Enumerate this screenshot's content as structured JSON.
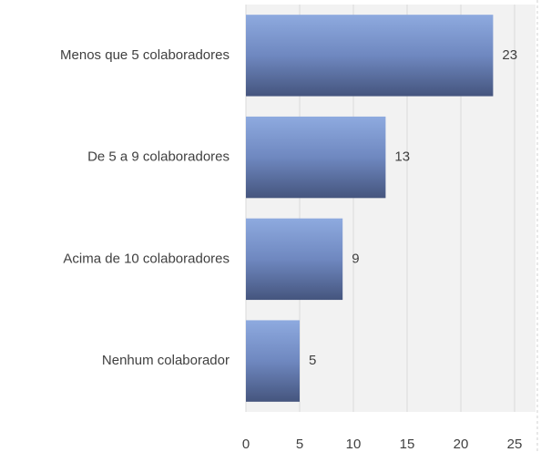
{
  "chart_data": {
    "type": "bar",
    "orientation": "horizontal",
    "categories": [
      "Menos que 5 colaboradores",
      "De 5 a 9 colaboradores",
      "Acima de 10 colaboradores",
      "Nenhum colaborador"
    ],
    "values": [
      23,
      13,
      9,
      5
    ],
    "color": "#7f9ad0",
    "xlim": [
      0,
      25
    ],
    "xticks": [
      0,
      5,
      10,
      15,
      20,
      25
    ],
    "grid": true
  }
}
